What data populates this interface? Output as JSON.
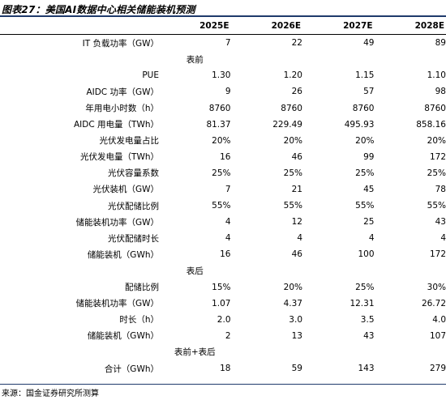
{
  "title": "图表27：美国AI数据中心相关储能装机预测",
  "columns": [
    "",
    "2025E",
    "2026E",
    "2027E",
    "2028E"
  ],
  "rows": [
    {
      "type": "data",
      "label": "IT 负载功率（GW）",
      "values": [
        "7",
        "22",
        "49",
        "89"
      ]
    },
    {
      "type": "section",
      "label": "表前"
    },
    {
      "type": "data",
      "label": "PUE",
      "values": [
        "1.30",
        "1.20",
        "1.15",
        "1.10"
      ]
    },
    {
      "type": "data",
      "label": "AIDC 功率（GW）",
      "values": [
        "9",
        "26",
        "57",
        "98"
      ]
    },
    {
      "type": "data",
      "label": "年用电小时数（h）",
      "values": [
        "8760",
        "8760",
        "8760",
        "8760"
      ]
    },
    {
      "type": "data",
      "label": "AIDC 用电量（TWh）",
      "values": [
        "81.37",
        "229.49",
        "495.93",
        "858.16"
      ]
    },
    {
      "type": "data",
      "label": "光伏发电量占比",
      "values": [
        "20%",
        "20%",
        "20%",
        "20%"
      ]
    },
    {
      "type": "data",
      "label": "光伏发电量（TWh）",
      "values": [
        "16",
        "46",
        "99",
        "172"
      ]
    },
    {
      "type": "data",
      "label": "光伏容量系数",
      "values": [
        "25%",
        "25%",
        "25%",
        "25%"
      ]
    },
    {
      "type": "data",
      "label": "光伏装机（GW）",
      "values": [
        "7",
        "21",
        "45",
        "78"
      ]
    },
    {
      "type": "data",
      "label": "光伏配储比例",
      "values": [
        "55%",
        "55%",
        "55%",
        "55%"
      ]
    },
    {
      "type": "data",
      "label": "储能装机功率（GW）",
      "values": [
        "4",
        "12",
        "25",
        "43"
      ]
    },
    {
      "type": "data",
      "label": "光伏配储时长",
      "values": [
        "4",
        "4",
        "4",
        "4"
      ]
    },
    {
      "type": "data",
      "label": "储能装机（GWh）",
      "values": [
        "16",
        "46",
        "100",
        "172"
      ]
    },
    {
      "type": "section",
      "label": "表后"
    },
    {
      "type": "data",
      "label": "配储比例",
      "values": [
        "15%",
        "20%",
        "25%",
        "30%"
      ]
    },
    {
      "type": "data",
      "label": "储能装机功率（GW）",
      "values": [
        "1.07",
        "4.37",
        "12.31",
        "26.72"
      ]
    },
    {
      "type": "data",
      "label": "时长（h）",
      "values": [
        "2.0",
        "3.0",
        "3.5",
        "4.0"
      ]
    },
    {
      "type": "data",
      "label": "储能装机（GWh）",
      "values": [
        "2",
        "13",
        "43",
        "107"
      ]
    },
    {
      "type": "section",
      "label": "表前+表后"
    },
    {
      "type": "data",
      "label": "合计（GWh）",
      "values": [
        "18",
        "59",
        "143",
        "279"
      ]
    }
  ],
  "source": "来源：国金证券研究所测算",
  "colors": {
    "rule": "#1f3a6b"
  }
}
